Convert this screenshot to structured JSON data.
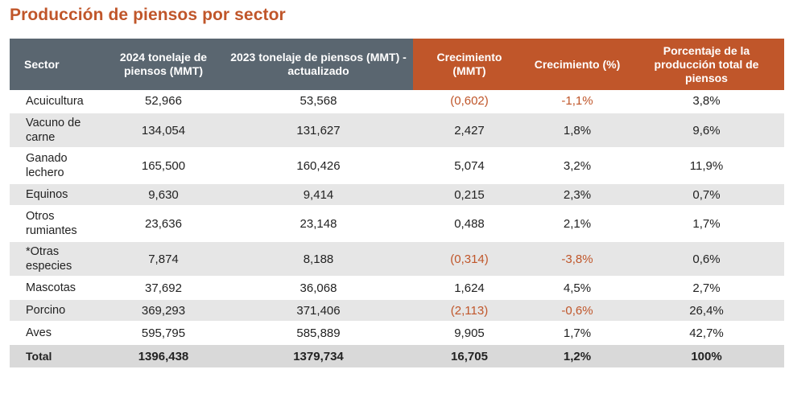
{
  "title": "Producción de piensos por sector",
  "colors": {
    "accent": "#c0562a",
    "header_gray": "#5a6670",
    "row_shade": "#e6e6e6",
    "total_row": "#d9d9d9"
  },
  "headers": [
    "Sector",
    "2024 tonelaje de piensos (MMT)",
    "2023 tonelaje de piensos (MMT) - actualizado",
    "Crecimiento (MMT)",
    "Crecimiento (%)",
    "Porcentaje de la producción total de piensos"
  ],
  "rows": [
    {
      "sector": "Acuicultura",
      "t2024": "52,966",
      "t2023": "53,568",
      "growth_mmt": "(0,602)",
      "growth_pct": "-1,1%",
      "share": "3,8%",
      "negative": true
    },
    {
      "sector": "Vacuno de carne",
      "t2024": "134,054",
      "t2023": "131,627",
      "growth_mmt": "2,427",
      "growth_pct": "1,8%",
      "share": "9,6%",
      "negative": false
    },
    {
      "sector": "Ganado lechero",
      "t2024": "165,500",
      "t2023": "160,426",
      "growth_mmt": "5,074",
      "growth_pct": "3,2%",
      "share": "11,9%",
      "negative": false
    },
    {
      "sector": "Equinos",
      "t2024": "9,630",
      "t2023": "9,414",
      "growth_mmt": "0,215",
      "growth_pct": "2,3%",
      "share": "0,7%",
      "negative": false
    },
    {
      "sector": "Otros rumiantes",
      "t2024": "23,636",
      "t2023": "23,148",
      "growth_mmt": "0,488",
      "growth_pct": "2,1%",
      "share": "1,7%",
      "negative": false
    },
    {
      "sector": "*Otras especies",
      "t2024": "7,874",
      "t2023": "8,188",
      "growth_mmt": "(0,314)",
      "growth_pct": "-3,8%",
      "share": "0,6%",
      "negative": true
    },
    {
      "sector": "Mascotas",
      "t2024": "37,692",
      "t2023": "36,068",
      "growth_mmt": "1,624",
      "growth_pct": "4,5%",
      "share": "2,7%",
      "negative": false
    },
    {
      "sector": "Porcino",
      "t2024": "369,293",
      "t2023": "371,406",
      "growth_mmt": "(2,113)",
      "growth_pct": "-0,6%",
      "share": "26,4%",
      "negative": true
    },
    {
      "sector": "Aves",
      "t2024": "595,795",
      "t2023": "585,889",
      "growth_mmt": "9,905",
      "growth_pct": "1,7%",
      "share": "42,7%",
      "negative": false
    }
  ],
  "total": {
    "sector": "Total",
    "t2024": "1396,438",
    "t2023": "1379,734",
    "growth_mmt": "16,705",
    "growth_pct": "1,2%",
    "share": "100%"
  }
}
